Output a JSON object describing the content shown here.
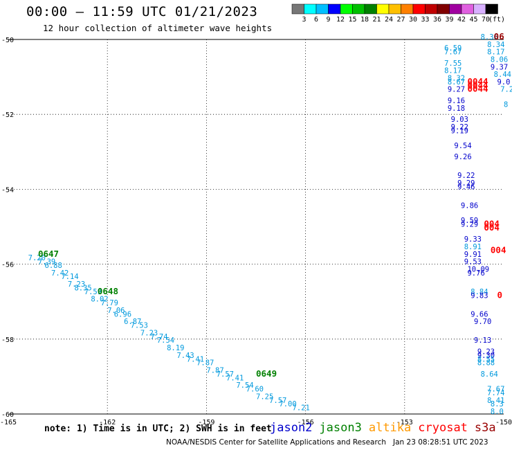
{
  "header": {
    "title": "00:00 – 11:59 UTC 01/21/2023",
    "subtitle": "12 hour collection of altimeter wave heights"
  },
  "scale": {
    "unit": "(ft)",
    "bins": [
      {
        "label": "3",
        "color": "#777777"
      },
      {
        "label": "6",
        "color": "#00ffff"
      },
      {
        "label": "9",
        "color": "#00bfff"
      },
      {
        "label": "12",
        "color": "#0000ff"
      },
      {
        "label": "15",
        "color": "#00ff00"
      },
      {
        "label": "18",
        "color": "#00c000"
      },
      {
        "label": "21",
        "color": "#008000"
      },
      {
        "label": "24",
        "color": "#ffff00"
      },
      {
        "label": "27",
        "color": "#ffc000"
      },
      {
        "label": "30",
        "color": "#ff8000"
      },
      {
        "label": "33",
        "color": "#ff0000"
      },
      {
        "label": "36",
        "color": "#c00000"
      },
      {
        "label": "39",
        "color": "#800000"
      },
      {
        "label": "42",
        "color": "#a000a0"
      },
      {
        "label": "45",
        "color": "#e060e0"
      },
      {
        "label": "70",
        "color": "#d8b0ff"
      },
      {
        "label": "",
        "color": "#000000"
      }
    ]
  },
  "footer": {
    "note": "note: 1) Time is in UTC; 2) SWH is in feet",
    "credit": "NOAA/NESDIS Center for Satellite Applications and Research   Jan 23 08:28:51 UTC 2023",
    "satellites": [
      {
        "name": "jason2",
        "color": "#0000cc"
      },
      {
        "name": "jason3",
        "color": "#008000"
      },
      {
        "name": "altika",
        "color": "#ff9900"
      },
      {
        "name": "cryosat",
        "color": "#ff0000"
      },
      {
        "name": "s3a",
        "color": "#990000"
      }
    ]
  },
  "chart_data": {
    "type": "scatter",
    "title": "00:00 – 11:59 UTC 01/21/2023",
    "subtitle": "12 hour collection of altimeter wave heights",
    "xlim": [
      -165,
      -150
    ],
    "ylim": [
      -60,
      -50
    ],
    "x_ticks": [
      -165,
      -162,
      -159,
      -156,
      -153,
      -150
    ],
    "x_tick_labels": [
      "-165",
      "-162",
      "-159",
      "-156",
      "-153",
      "-150"
    ],
    "y_ticks": [
      -50,
      -52,
      -54,
      -56,
      -58,
      -60
    ],
    "y_tick_labels": [
      "-50",
      "-52",
      "-54",
      "-56",
      "-58",
      "-60"
    ],
    "grid": true,
    "series": [
      {
        "name": "jason3",
        "text_color": "#0099dd",
        "points": [
          {
            "lon": -164.4,
            "lat": -55.9,
            "text": "7.20"
          },
          {
            "lon": -164.1,
            "lat": -56.0,
            "text": "7.39"
          },
          {
            "lon": -163.9,
            "lat": -56.1,
            "text": "6.88"
          },
          {
            "lon": -163.7,
            "lat": -56.3,
            "text": "7.42"
          },
          {
            "lon": -163.4,
            "lat": -56.4,
            "text": "7.14"
          },
          {
            "lon": -163.2,
            "lat": -56.6,
            "text": "7.23"
          },
          {
            "lon": -163.0,
            "lat": -56.7,
            "text": "8.35"
          },
          {
            "lon": -162.7,
            "lat": -56.8,
            "text": "7.59"
          },
          {
            "lon": -162.5,
            "lat": -57.0,
            "text": "8.02"
          },
          {
            "lon": -162.2,
            "lat": -57.1,
            "text": "7.79"
          },
          {
            "lon": -162.0,
            "lat": -57.3,
            "text": "7.06"
          },
          {
            "lon": -161.8,
            "lat": -57.4,
            "text": "6.96"
          },
          {
            "lon": -161.5,
            "lat": -57.6,
            "text": "6.87"
          },
          {
            "lon": -161.3,
            "lat": -57.7,
            "text": "7.53"
          },
          {
            "lon": -161.0,
            "lat": -57.9,
            "text": "7.23"
          },
          {
            "lon": -160.7,
            "lat": -58.0,
            "text": "7.74"
          },
          {
            "lon": -160.5,
            "lat": -58.1,
            "text": "7.54"
          },
          {
            "lon": -160.2,
            "lat": -58.3,
            "text": "8.19"
          },
          {
            "lon": -159.9,
            "lat": -58.5,
            "text": "7.43"
          },
          {
            "lon": -159.6,
            "lat": -58.6,
            "text": "7.41"
          },
          {
            "lon": -159.3,
            "lat": -58.7,
            "text": "7.87"
          },
          {
            "lon": -159.0,
            "lat": -58.9,
            "text": "7.87"
          },
          {
            "lon": -158.7,
            "lat": -59.0,
            "text": "7.57"
          },
          {
            "lon": -158.4,
            "lat": -59.1,
            "text": "7.41"
          },
          {
            "lon": -158.1,
            "lat": -59.3,
            "text": "7.54"
          },
          {
            "lon": -157.8,
            "lat": -59.4,
            "text": "7.60"
          },
          {
            "lon": -157.5,
            "lat": -59.6,
            "text": "7.25"
          },
          {
            "lon": -157.1,
            "lat": -59.7,
            "text": "7.57"
          },
          {
            "lon": -156.8,
            "lat": -59.8,
            "text": "7.00"
          },
          {
            "lon": -156.4,
            "lat": -59.9,
            "text": "7.21"
          }
        ],
        "time_labels": [
          {
            "lon": -164.1,
            "lat": -55.8,
            "text": "0647",
            "color": "#008000"
          },
          {
            "lon": -162.3,
            "lat": -56.8,
            "text": "0648",
            "color": "#008000"
          },
          {
            "lon": -157.5,
            "lat": -59.0,
            "text": "0649",
            "color": "#008000"
          }
        ]
      },
      {
        "name": "east_swath",
        "text_color": "#0000cc",
        "points": [
          {
            "lon": -150.7,
            "lat": -50.0,
            "text": "8.36",
            "color": "#0099dd"
          },
          {
            "lon": -150.5,
            "lat": -50.2,
            "text": "8.34",
            "color": "#0099dd"
          },
          {
            "lon": -151.8,
            "lat": -50.3,
            "text": "6.59",
            "color": "#0099dd"
          },
          {
            "lon": -151.8,
            "lat": -50.4,
            "text": "7.67",
            "color": "#0099dd"
          },
          {
            "lon": -150.5,
            "lat": -50.4,
            "text": "8.17",
            "color": "#0099dd"
          },
          {
            "lon": -150.4,
            "lat": -50.6,
            "text": "8.06",
            "color": "#0099dd"
          },
          {
            "lon": -151.8,
            "lat": -50.7,
            "text": "7.55",
            "color": "#0099dd"
          },
          {
            "lon": -151.8,
            "lat": -50.9,
            "text": "8.17",
            "color": "#0099dd"
          },
          {
            "lon": -150.4,
            "lat": -50.8,
            "text": "9.37",
            "color": "#0000cc"
          },
          {
            "lon": -150.3,
            "lat": -51.0,
            "text": "8.44",
            "color": "#0099dd"
          },
          {
            "lon": -151.7,
            "lat": -51.1,
            "text": "8.32",
            "color": "#0099dd"
          },
          {
            "lon": -151.7,
            "lat": -51.2,
            "text": "8.67",
            "color": "#0099dd"
          },
          {
            "lon": -150.2,
            "lat": -51.2,
            "text": "9.0",
            "color": "#0000cc"
          },
          {
            "lon": -151.7,
            "lat": -51.4,
            "text": "9.27",
            "color": "#0000cc"
          },
          {
            "lon": -150.1,
            "lat": -51.4,
            "text": "7.2",
            "color": "#0099dd"
          },
          {
            "lon": -151.7,
            "lat": -51.7,
            "text": "9.16",
            "color": "#0000cc"
          },
          {
            "lon": -151.7,
            "lat": -51.9,
            "text": "9.18",
            "color": "#0000cc"
          },
          {
            "lon": -150.0,
            "lat": -51.8,
            "text": "8",
            "color": "#0099dd"
          },
          {
            "lon": -151.6,
            "lat": -52.2,
            "text": "9.03",
            "color": "#0000cc"
          },
          {
            "lon": -151.6,
            "lat": -52.4,
            "text": "9.22",
            "color": "#0000cc"
          },
          {
            "lon": -151.6,
            "lat": -52.5,
            "text": "9.19",
            "color": "#0000cc"
          },
          {
            "lon": -151.5,
            "lat": -52.9,
            "text": "9.54",
            "color": "#0000cc"
          },
          {
            "lon": -151.5,
            "lat": -53.2,
            "text": "9.26",
            "color": "#0000cc"
          },
          {
            "lon": -151.4,
            "lat": -53.7,
            "text": "9.22",
            "color": "#0000cc"
          },
          {
            "lon": -151.4,
            "lat": -53.9,
            "text": "9.29",
            "color": "#0000cc"
          },
          {
            "lon": -151.4,
            "lat": -54.0,
            "text": "9.46",
            "color": "#0000cc"
          },
          {
            "lon": -151.3,
            "lat": -54.5,
            "text": "9.86",
            "color": "#0000cc"
          },
          {
            "lon": -151.3,
            "lat": -54.9,
            "text": "9.59",
            "color": "#0000cc"
          },
          {
            "lon": -151.3,
            "lat": -55.0,
            "text": "9.29",
            "color": "#0000cc"
          },
          {
            "lon": -151.2,
            "lat": -55.4,
            "text": "9.33",
            "color": "#0000cc"
          },
          {
            "lon": -151.2,
            "lat": -55.6,
            "text": "8.91",
            "color": "#0099dd"
          },
          {
            "lon": -151.2,
            "lat": -55.8,
            "text": "9.91",
            "color": "#0000cc"
          },
          {
            "lon": -151.2,
            "lat": -56.0,
            "text": "9.53",
            "color": "#0000cc"
          },
          {
            "lon": -151.1,
            "lat": -56.2,
            "text": "10.09",
            "color": "#0000cc"
          },
          {
            "lon": -151.1,
            "lat": -56.3,
            "text": "9.76",
            "color": "#0000cc"
          },
          {
            "lon": -151.0,
            "lat": -56.8,
            "text": "8.84",
            "color": "#0099dd"
          },
          {
            "lon": -151.0,
            "lat": -56.9,
            "text": "9.83",
            "color": "#0000cc"
          },
          {
            "lon": -151.0,
            "lat": -57.4,
            "text": "9.66",
            "color": "#0000cc"
          },
          {
            "lon": -150.9,
            "lat": -57.6,
            "text": "9.70",
            "color": "#0000cc"
          },
          {
            "lon": -150.9,
            "lat": -58.1,
            "text": "9.13",
            "color": "#0000cc"
          },
          {
            "lon": -150.8,
            "lat": -58.4,
            "text": "9.23",
            "color": "#0000cc"
          },
          {
            "lon": -150.8,
            "lat": -58.5,
            "text": "9.30",
            "color": "#0000cc"
          },
          {
            "lon": -150.8,
            "lat": -58.6,
            "text": "8.55",
            "color": "#0099dd"
          },
          {
            "lon": -150.8,
            "lat": -58.7,
            "text": "8.88",
            "color": "#0099dd"
          },
          {
            "lon": -150.7,
            "lat": -59.0,
            "text": "8.64",
            "color": "#0099dd"
          },
          {
            "lon": -150.5,
            "lat": -59.4,
            "text": "7.67",
            "color": "#0099dd"
          },
          {
            "lon": -150.5,
            "lat": -59.5,
            "text": "7.74",
            "color": "#0099dd"
          },
          {
            "lon": -150.5,
            "lat": -59.7,
            "text": "8.41",
            "color": "#0099dd"
          },
          {
            "lon": -150.4,
            "lat": -59.8,
            "text": "8.3",
            "color": "#0099dd"
          },
          {
            "lon": -150.4,
            "lat": -60.0,
            "text": "8.0",
            "color": "#0099dd"
          }
        ],
        "time_labels": [
          {
            "lon": -150.3,
            "lat": -50.0,
            "text": "06",
            "color": "#990000"
          },
          {
            "lon": -151.1,
            "lat": -51.2,
            "text": "0044",
            "color": "#ff0000"
          },
          {
            "lon": -151.1,
            "lat": -51.3,
            "text": "0044",
            "color": "#ff0000"
          },
          {
            "lon": -151.1,
            "lat": -51.4,
            "text": "0044",
            "color": "#ff0000"
          },
          {
            "lon": -150.6,
            "lat": -55.0,
            "text": "004",
            "color": "#ff0000"
          },
          {
            "lon": -150.6,
            "lat": -55.1,
            "text": "004",
            "color": "#ff0000"
          },
          {
            "lon": -150.4,
            "lat": -55.7,
            "text": "004",
            "color": "#ff0000"
          },
          {
            "lon": -150.2,
            "lat": -56.9,
            "text": "0",
            "color": "#ff0000"
          }
        ]
      }
    ]
  }
}
